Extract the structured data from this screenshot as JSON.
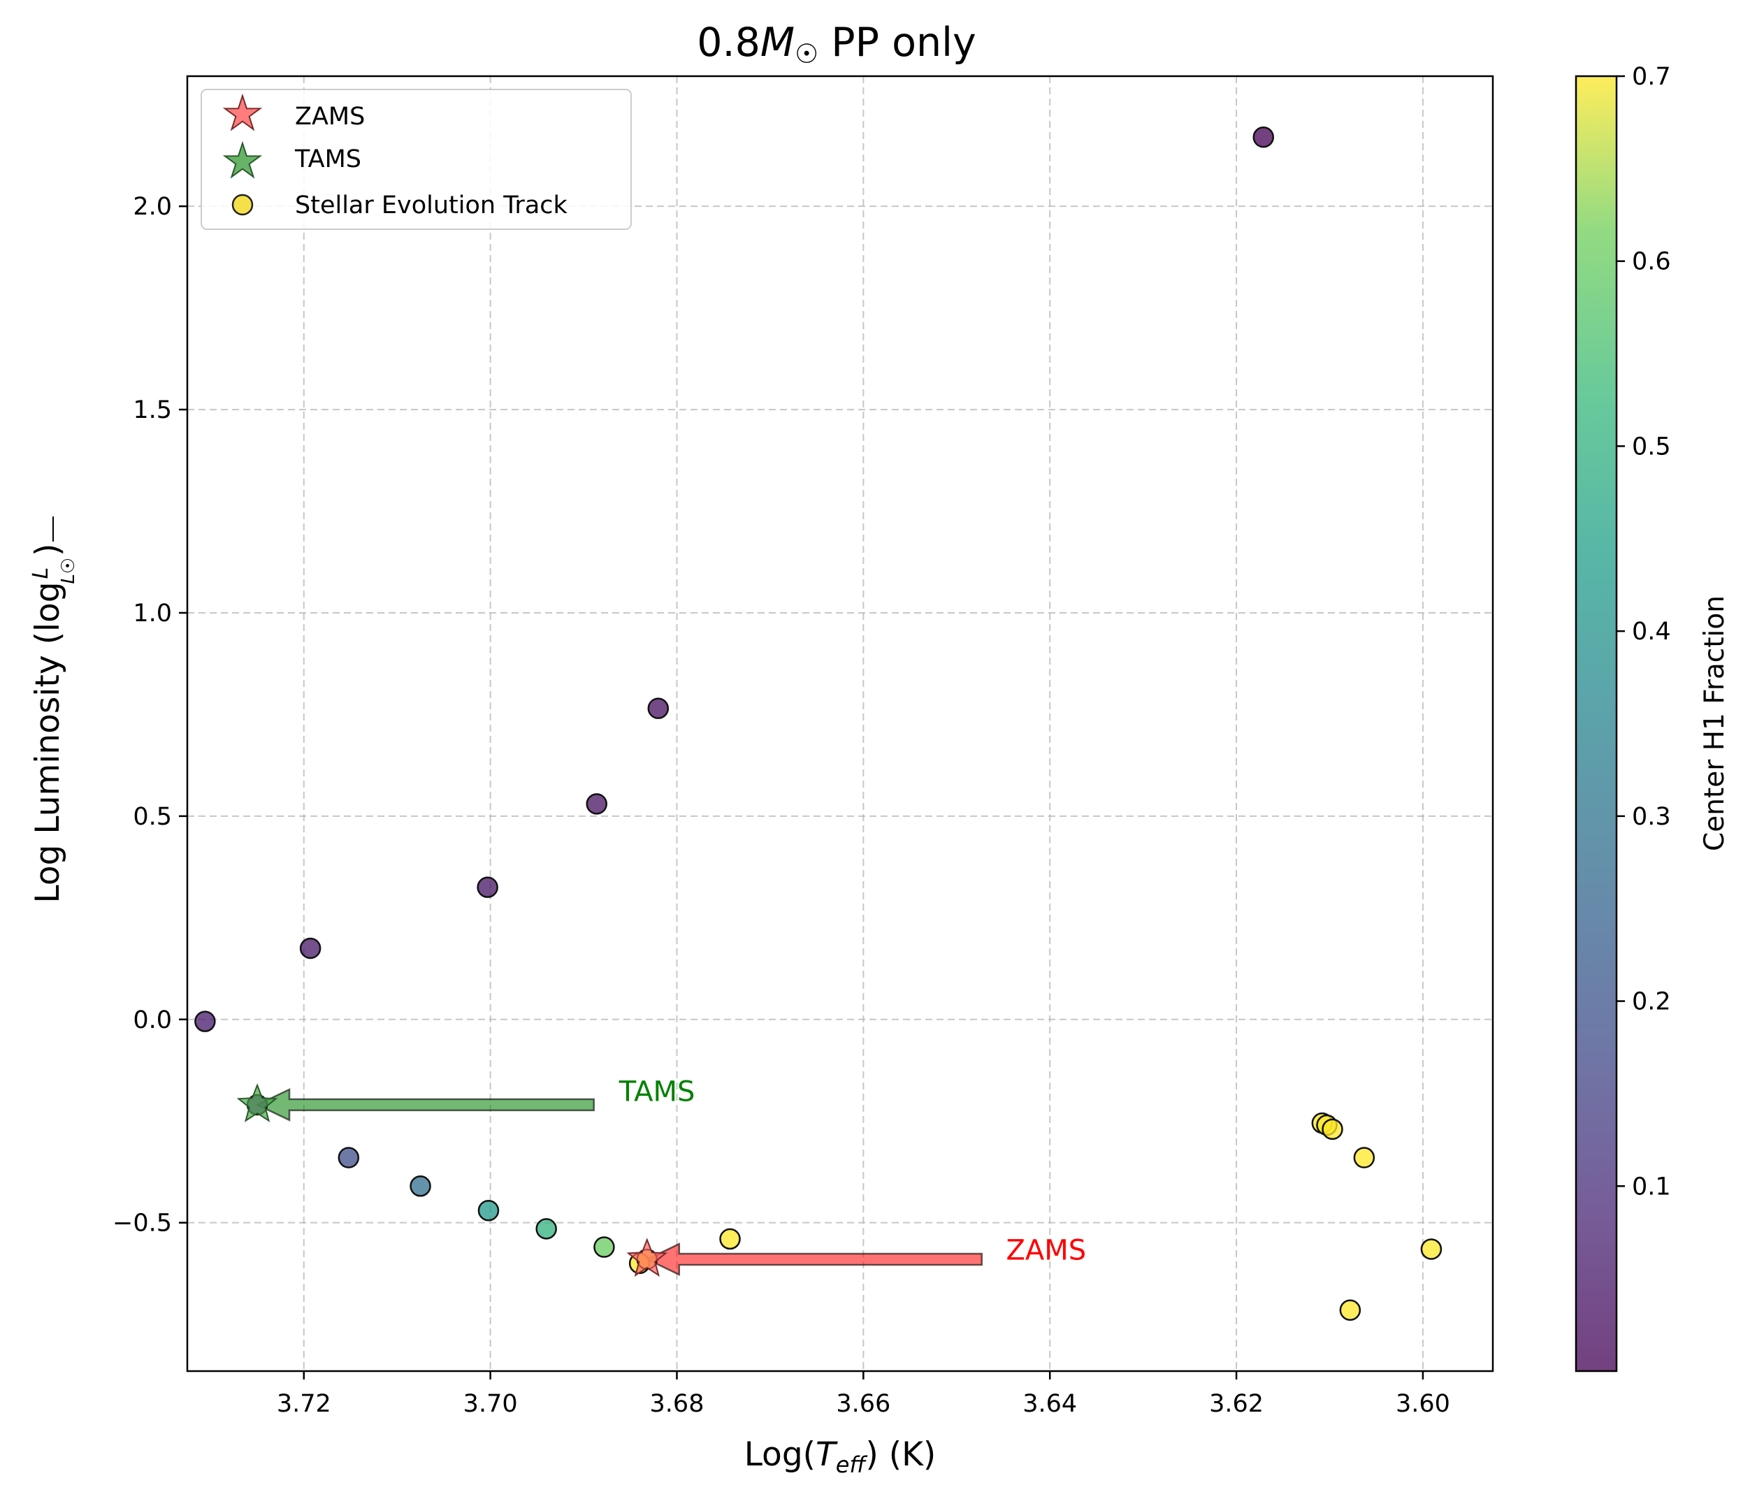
{
  "chart_data": {
    "type": "scatter",
    "title": "0.8M☉ PP only",
    "title_parts": {
      "mass": "0.8",
      "symbol": "M",
      "sub": "☉",
      "suffix": "PP only"
    },
    "xlabel": "Log(Teff) (K)",
    "xlabel_parts": {
      "pre": "Log(",
      "var": "T",
      "sub": "eff",
      "post": ") (K)"
    },
    "ylabel": "Log Luminosity (log L/L☉)",
    "ylabel_parts": {
      "pre": "Log Luminosity (log",
      "num": "L",
      "den": "L☉",
      "post": ")"
    },
    "xlim": [
      3.7325,
      3.5925
    ],
    "ylim": [
      -0.865,
      2.32
    ],
    "x_inverted": true,
    "grid": true,
    "xticks": [
      3.72,
      3.7,
      3.68,
      3.66,
      3.64,
      3.62,
      3.6
    ],
    "xtick_labels": [
      "3.72",
      "3.70",
      "3.68",
      "3.66",
      "3.64",
      "3.62",
      "3.60"
    ],
    "yticks": [
      -0.5,
      0.0,
      0.5,
      1.0,
      1.5,
      2.0
    ],
    "ytick_labels": [
      "−0.5",
      "0.0",
      "0.5",
      "1.0",
      "1.5",
      "2.0"
    ],
    "colormap": "viridis",
    "colorbar": {
      "label": "Center H1 Fraction",
      "range": [
        0.0,
        0.7
      ],
      "ticks": [
        0.1,
        0.2,
        0.3,
        0.4,
        0.5,
        0.6,
        0.7
      ],
      "tick_labels": [
        "0.1",
        "0.2",
        "0.3",
        "0.4",
        "0.5",
        "0.6",
        "0.7"
      ]
    },
    "legend": {
      "placement": "top-left",
      "entries": [
        {
          "label": "ZAMS",
          "marker": "star",
          "color": "#ff6666"
        },
        {
          "label": "TAMS",
          "marker": "star",
          "color": "#4ca64c"
        },
        {
          "label": "Stellar Evolution Track",
          "marker": "circle",
          "color": "#f5e04a"
        }
      ]
    },
    "points": [
      {
        "x": 3.6171,
        "y": 2.17,
        "h1": 0.0
      },
      {
        "x": 3.682,
        "y": 0.765,
        "h1": 0.03
      },
      {
        "x": 3.6886,
        "y": 0.53,
        "h1": 0.035
      },
      {
        "x": 3.7003,
        "y": 0.325,
        "h1": 0.04
      },
      {
        "x": 3.7193,
        "y": 0.175,
        "h1": 0.045
      },
      {
        "x": 3.7306,
        "y": -0.005,
        "h1": 0.05
      },
      {
        "x": 3.725,
        "y": -0.21,
        "h1": 0.08
      },
      {
        "x": 3.7152,
        "y": -0.34,
        "h1": 0.18
      },
      {
        "x": 3.7075,
        "y": -0.41,
        "h1": 0.28
      },
      {
        "x": 3.7002,
        "y": -0.47,
        "h1": 0.42
      },
      {
        "x": 3.694,
        "y": -0.515,
        "h1": 0.5
      },
      {
        "x": 3.6878,
        "y": -0.56,
        "h1": 0.6
      },
      {
        "x": 3.684,
        "y": -0.6,
        "h1": 0.7
      },
      {
        "x": 3.6832,
        "y": -0.59,
        "h1": 0.7
      },
      {
        "x": 3.6743,
        "y": -0.54,
        "h1": 0.7
      },
      {
        "x": 3.6108,
        "y": -0.255,
        "h1": 0.7
      },
      {
        "x": 3.6103,
        "y": -0.26,
        "h1": 0.7
      },
      {
        "x": 3.6097,
        "y": -0.27,
        "h1": 0.7
      },
      {
        "x": 3.6063,
        "y": -0.34,
        "h1": 0.7
      },
      {
        "x": 3.6078,
        "y": -0.715,
        "h1": 0.7
      },
      {
        "x": 3.5991,
        "y": -0.565,
        "h1": 0.7
      }
    ],
    "markers": {
      "zams": {
        "x": 3.6832,
        "y": -0.59,
        "color": "#ff6666"
      },
      "tams": {
        "x": 3.725,
        "y": -0.21,
        "color": "#4ca64c"
      }
    },
    "annotations": [
      {
        "text": "TAMS",
        "color": "#008000",
        "text_x": 3.6862,
        "text_y": -0.18,
        "arrow_from_x": 3.6889,
        "arrow_from_y": -0.21,
        "arrow_to_x": 3.725,
        "arrow_to_y": -0.21
      },
      {
        "text": "ZAMS",
        "color": "#ff0000",
        "text_x": 3.6447,
        "text_y": -0.57,
        "arrow_from_x": 3.6473,
        "arrow_from_y": -0.59,
        "arrow_to_x": 3.6832,
        "arrow_to_y": -0.59
      }
    ]
  }
}
